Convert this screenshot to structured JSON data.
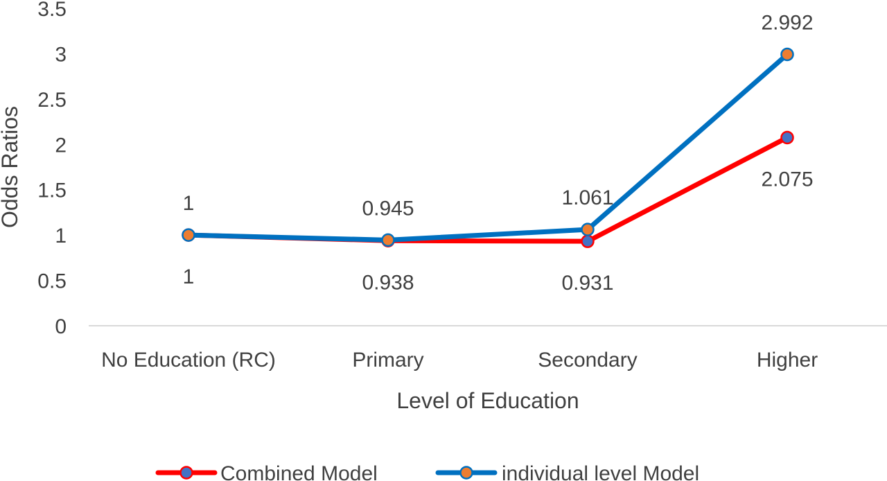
{
  "chart_data": {
    "type": "line",
    "title": "",
    "xlabel": "Level of Education",
    "ylabel": "Odds Ratios",
    "categories": [
      "No Education (RC)",
      "Primary",
      "Secondary",
      "Higher"
    ],
    "ylim": [
      0,
      3.5
    ],
    "yticks": [
      "0",
      "0.5",
      "1",
      "1.5",
      "2",
      "2.5",
      "3",
      "3.5"
    ],
    "grid": false,
    "legend_position": "bottom",
    "series": [
      {
        "name": "Combined Model",
        "values": [
          1,
          0.938,
          0.931,
          2.075
        ],
        "labels": [
          "1",
          "0.938",
          "0.931",
          "2.075"
        ],
        "label_position": "below",
        "line_color": "#ff0000",
        "marker_fill": "#4472c4",
        "marker_edge": "#ff0000"
      },
      {
        "name": "individual level Model",
        "values": [
          1,
          0.945,
          1.061,
          2.992
        ],
        "labels": [
          "1",
          "0.945",
          "1.061",
          "2.992"
        ],
        "label_position": "above",
        "line_color": "#0070c0",
        "marker_fill": "#ed7d31",
        "marker_edge": "#0070c0"
      }
    ]
  }
}
